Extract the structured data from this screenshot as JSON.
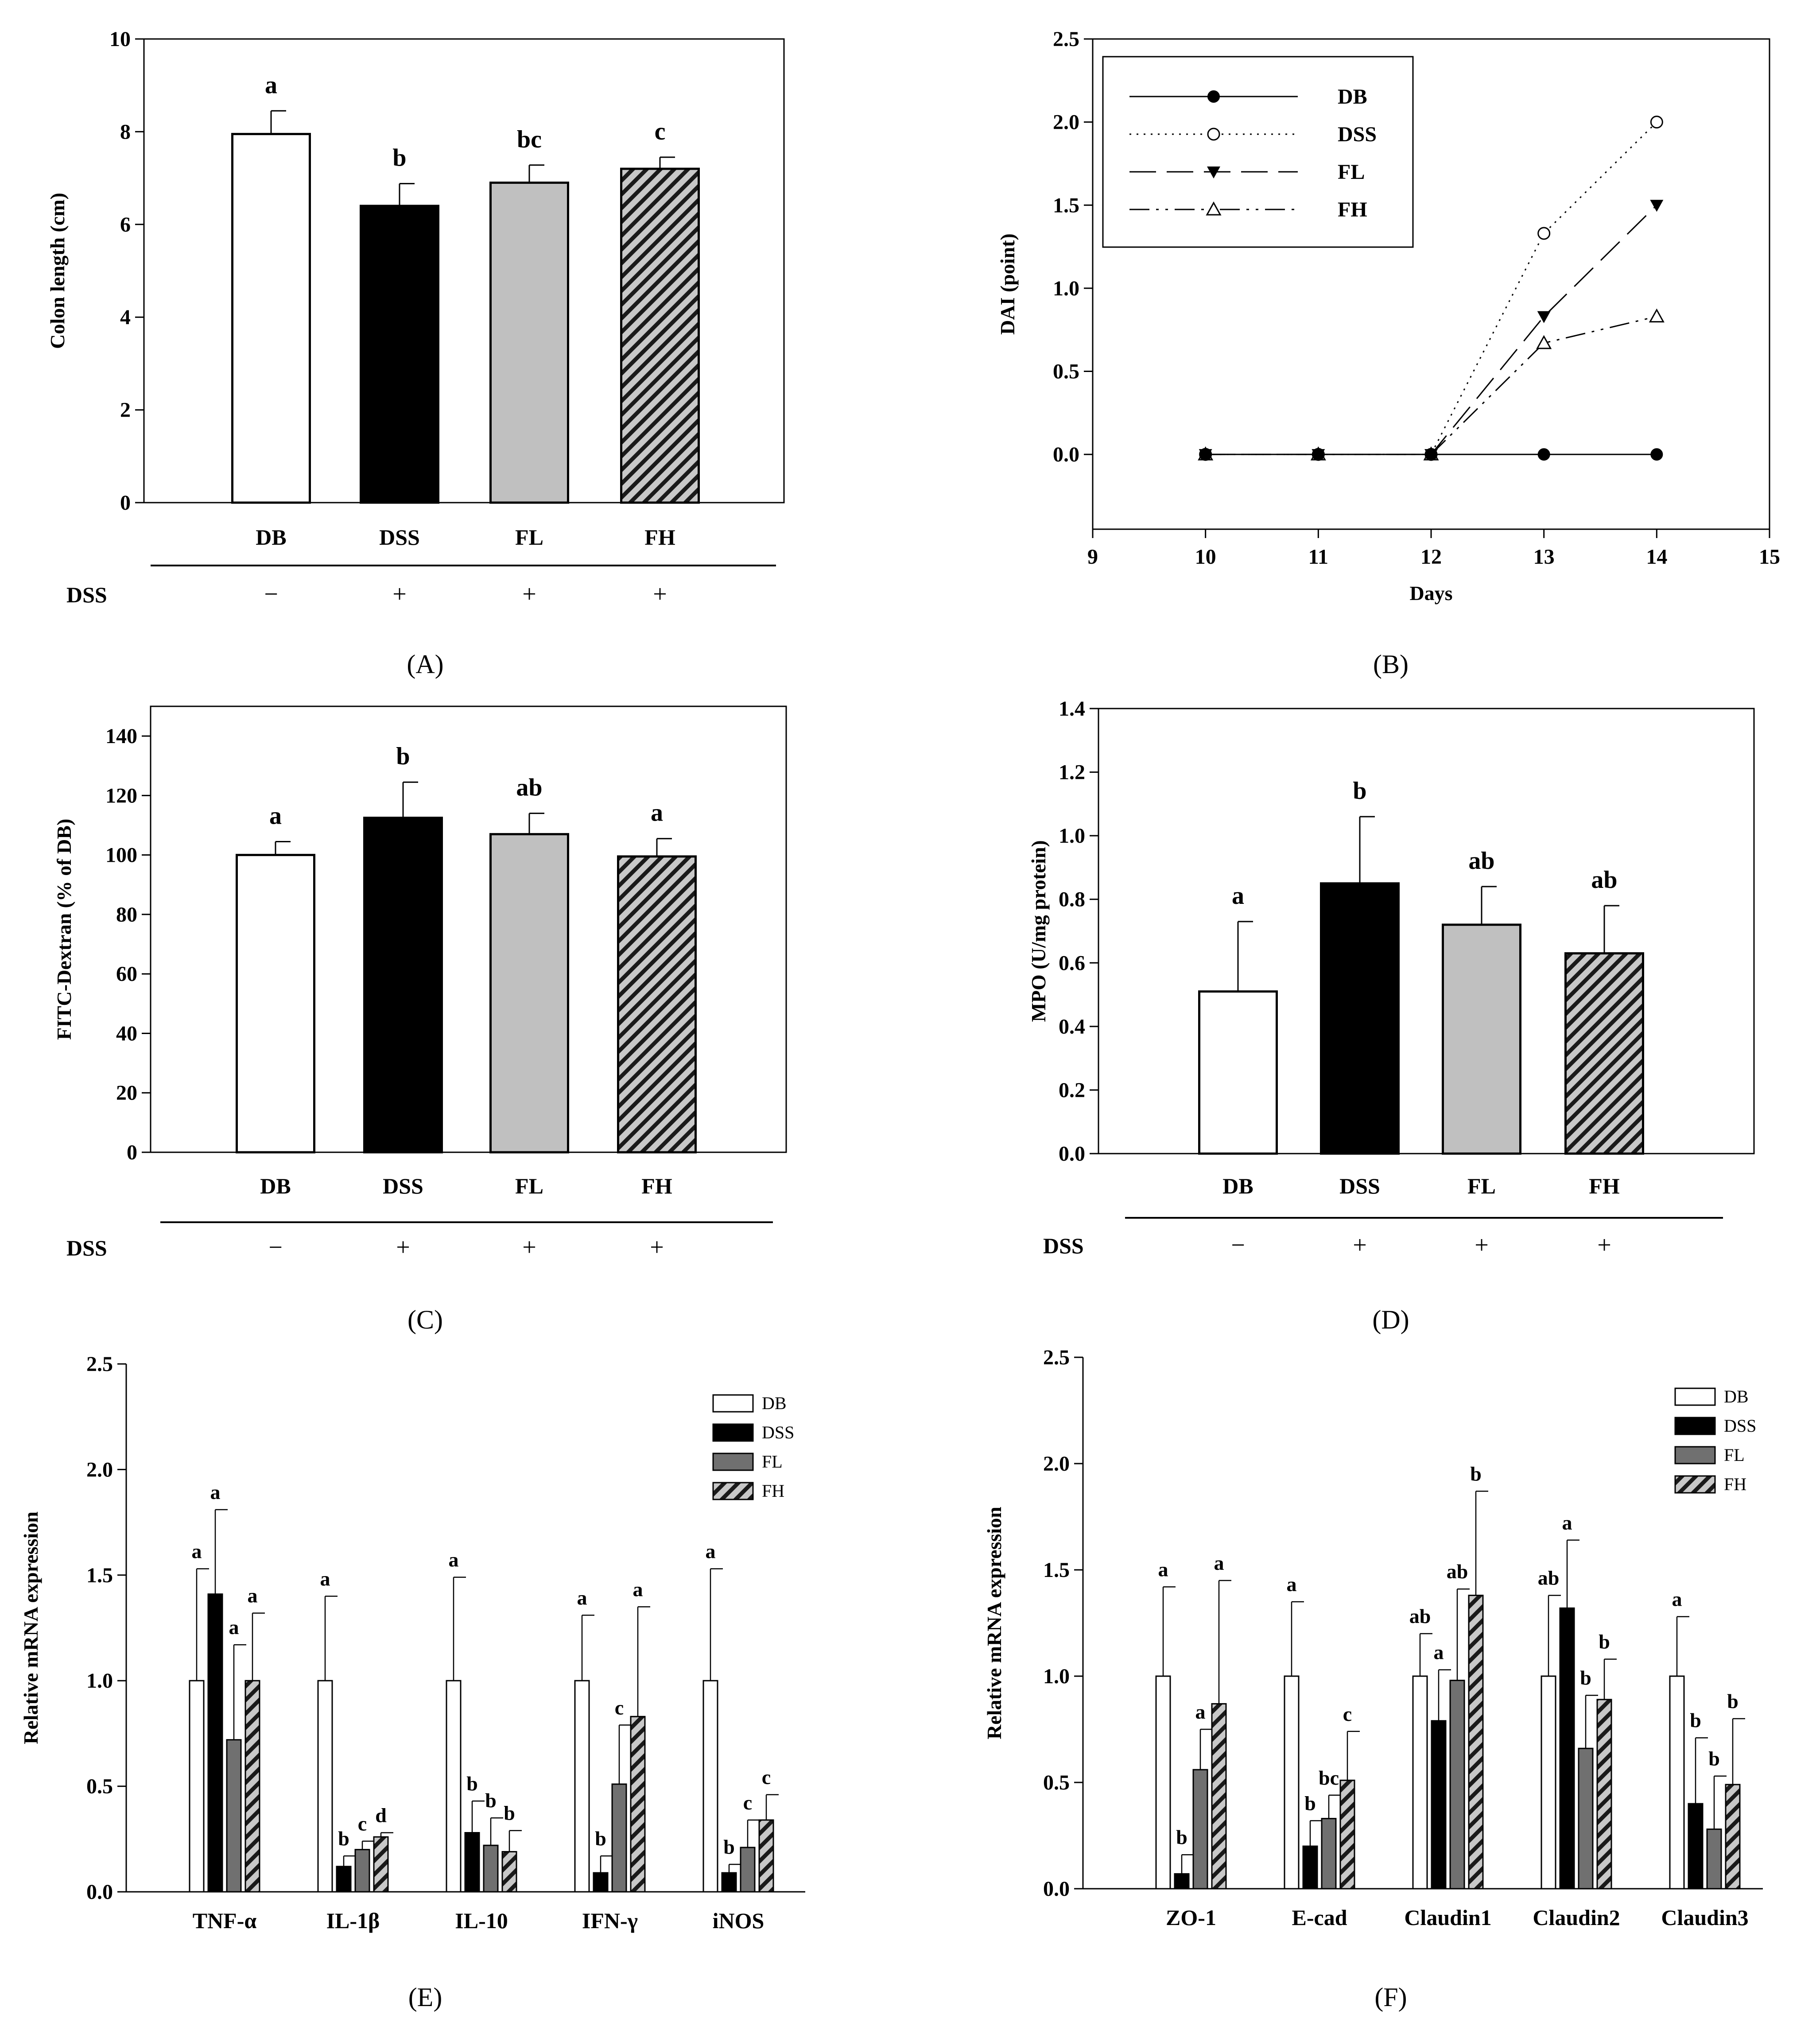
{
  "colors": {
    "DB": "#ffffff",
    "DSS": "#000000",
    "FL_light": "#c0c0c0",
    "FL_dark": "#707070",
    "FH_bg": "#c8c8c8",
    "FH_stripe": "#1a1a1a"
  },
  "chart_data": [
    {
      "id": "A",
      "type": "bar",
      "caption": "A",
      "title": "",
      "xlabel": "",
      "ylabel": "Colon length (cm)",
      "ylim": [
        0,
        10
      ],
      "yticks": [
        "0",
        "2",
        "4",
        "6",
        "8",
        "10"
      ],
      "categories": [
        "DB",
        "DSS",
        "FL",
        "FH"
      ],
      "values": [
        7.95,
        6.4,
        6.9,
        7.2
      ],
      "errors": [
        0.5,
        0.48,
        0.38,
        0.25
      ],
      "letters": [
        "a",
        "b",
        "bc",
        "c"
      ],
      "treatment": {
        "label": "DSS",
        "signs": [
          "−",
          "+",
          "+",
          "+"
        ]
      }
    },
    {
      "id": "B",
      "type": "line",
      "caption": "B",
      "title": "",
      "xlabel": "Days",
      "ylabel": "DAI (point)",
      "xlim": [
        9,
        15
      ],
      "ylim": [
        -0.45,
        2.5
      ],
      "xticks": [
        "9",
        "10",
        "11",
        "12",
        "13",
        "14",
        "15"
      ],
      "yticks": [
        "0.0",
        "0.5",
        "1.0",
        "1.5",
        "2.0",
        "2.5"
      ],
      "x": [
        10,
        11,
        12,
        13,
        14
      ],
      "series": [
        {
          "name": "DB",
          "values": [
            0,
            0,
            0,
            0,
            0
          ]
        },
        {
          "name": "DSS",
          "values": [
            0,
            0,
            0,
            1.33,
            2.0
          ]
        },
        {
          "name": "FL",
          "values": [
            0,
            0,
            0,
            0.83,
            1.5
          ]
        },
        {
          "name": "FH",
          "values": [
            0,
            0,
            0,
            0.67,
            0.83
          ]
        }
      ],
      "legend_position": "top-left"
    },
    {
      "id": "C",
      "type": "bar",
      "caption": "C",
      "title": "",
      "xlabel": "",
      "ylabel": "FITC-Dextran (% of DB)",
      "ylim": [
        0,
        150
      ],
      "yticks": [
        "0",
        "20",
        "40",
        "60",
        "80",
        "100",
        "120",
        "140"
      ],
      "categories": [
        "DB",
        "DSS",
        "FL",
        "FH"
      ],
      "values": [
        100,
        112.5,
        107,
        99.5
      ],
      "errors": [
        4.5,
        12,
        7,
        6
      ],
      "letters": [
        "a",
        "b",
        "ab",
        "a"
      ],
      "treatment": {
        "label": "DSS",
        "signs": [
          "−",
          "+",
          "+",
          "+"
        ]
      }
    },
    {
      "id": "D",
      "type": "bar",
      "caption": "D",
      "title": "",
      "xlabel": "",
      "ylabel": "MPO (U/mg protein)",
      "ylim": [
        0,
        1.4
      ],
      "yticks": [
        "0.0",
        "0.2",
        "0.4",
        "0.6",
        "0.8",
        "1.0",
        "1.2",
        "1.4"
      ],
      "categories": [
        "DB",
        "DSS",
        "FL",
        "FH"
      ],
      "values": [
        0.51,
        0.85,
        0.72,
        0.63
      ],
      "errors": [
        0.22,
        0.21,
        0.12,
        0.15
      ],
      "letters": [
        "a",
        "b",
        "ab",
        "ab"
      ],
      "treatment": {
        "label": "DSS",
        "signs": [
          "−",
          "+",
          "+",
          "+"
        ]
      }
    },
    {
      "id": "E",
      "type": "bar",
      "caption": "E",
      "title": "",
      "xlabel": "",
      "ylabel": "Relative mRNA expression",
      "ylim": [
        0,
        2.5
      ],
      "yticks": [
        "0.0",
        "0.5",
        "1.0",
        "1.5",
        "2.0",
        "2.5"
      ],
      "categories": [
        "TNF-α",
        "IL-1β",
        "IL-10",
        "IFN-γ",
        "iNOS"
      ],
      "series": [
        {
          "name": "DB",
          "values": [
            1.0,
            1.0,
            1.0,
            1.0,
            1.0
          ],
          "errors": [
            0.53,
            0.4,
            0.49,
            0.31,
            0.53
          ],
          "letters": [
            "a",
            "a",
            "a",
            "a",
            "a"
          ]
        },
        {
          "name": "DSS",
          "values": [
            1.41,
            0.12,
            0.28,
            0.09,
            0.09
          ],
          "errors": [
            0.4,
            0.05,
            0.15,
            0.08,
            0.04
          ],
          "letters": [
            "a",
            "b",
            "b",
            "b",
            "b"
          ]
        },
        {
          "name": "FL",
          "values": [
            0.72,
            0.2,
            0.22,
            0.51,
            0.21
          ],
          "errors": [
            0.45,
            0.04,
            0.13,
            0.28,
            0.13
          ],
          "letters": [
            "a",
            "c",
            "b",
            "c",
            "c"
          ]
        },
        {
          "name": "FH",
          "values": [
            1.0,
            0.26,
            0.19,
            0.83,
            0.34
          ],
          "errors": [
            0.32,
            0.02,
            0.1,
            0.52,
            0.12
          ],
          "letters": [
            "a",
            "d",
            "b",
            "a",
            "c"
          ]
        }
      ],
      "legend_position": "top-right"
    },
    {
      "id": "F",
      "type": "bar",
      "caption": "F",
      "title": "",
      "xlabel": "",
      "ylabel": "Relative mRNA expression",
      "ylim": [
        0,
        2.5
      ],
      "yticks": [
        "0.0",
        "0.5",
        "1.0",
        "1.5",
        "2.0",
        "2.5"
      ],
      "categories": [
        "ZO-1",
        "E-cad",
        "Claudin1",
        "Claudin2",
        "Claudin3"
      ],
      "series": [
        {
          "name": "DB",
          "values": [
            1.0,
            1.0,
            1.0,
            1.0,
            1.0
          ],
          "errors": [
            0.42,
            0.35,
            0.2,
            0.38,
            0.28
          ],
          "letters": [
            "a",
            "a",
            "ab",
            "ab",
            "a"
          ]
        },
        {
          "name": "DSS",
          "values": [
            0.07,
            0.2,
            0.79,
            1.32,
            0.4
          ],
          "errors": [
            0.09,
            0.12,
            0.24,
            0.32,
            0.31
          ],
          "letters": [
            "b",
            "b",
            "a",
            "a",
            "b"
          ]
        },
        {
          "name": "FL",
          "values": [
            0.56,
            0.33,
            0.98,
            0.66,
            0.28
          ],
          "errors": [
            0.19,
            0.11,
            0.43,
            0.25,
            0.25
          ],
          "letters": [
            "a",
            "bc",
            "ab",
            "b",
            "b"
          ]
        },
        {
          "name": "FH",
          "values": [
            0.87,
            0.51,
            1.38,
            0.89,
            0.49
          ],
          "errors": [
            0.58,
            0.23,
            0.49,
            0.19,
            0.31
          ],
          "letters": [
            "a",
            "c",
            "b",
            "b",
            "b"
          ]
        }
      ],
      "legend_position": "top-right"
    }
  ]
}
